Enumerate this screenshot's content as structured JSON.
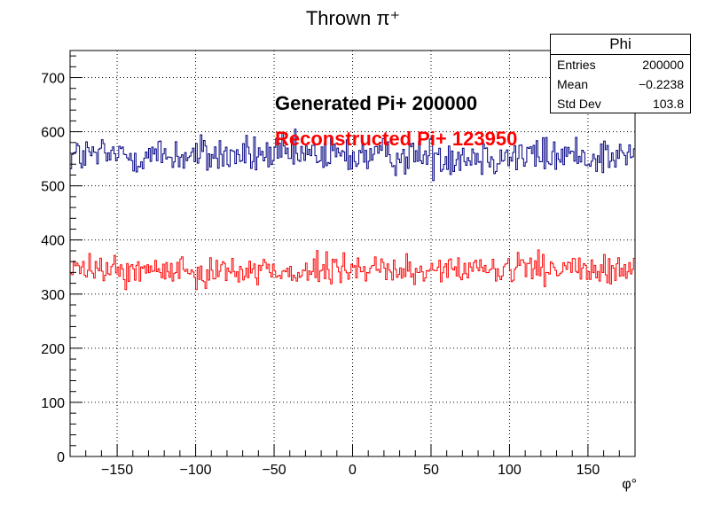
{
  "chart_data": {
    "type": "histogram",
    "title": "Thrown π⁺",
    "xlabel": "φ°",
    "ylabel": "",
    "xlim": [
      -180,
      180
    ],
    "ylim": [
      0,
      750
    ],
    "x_ticks": [
      -150,
      -100,
      -50,
      0,
      50,
      100,
      150
    ],
    "x_tick_labels": [
      "−150",
      "−100",
      "−50",
      "0",
      "50",
      "100",
      "150"
    ],
    "y_ticks": [
      0,
      100,
      200,
      300,
      400,
      500,
      600,
      700
    ],
    "y_tick_labels": [
      "0",
      "100",
      "200",
      "300",
      "400",
      "500",
      "600",
      "700"
    ],
    "grid": true,
    "bins": 360,
    "annotations": [
      {
        "text": "Generated Pi+ 200000",
        "color": "#000000"
      },
      {
        "text": "Reconstructed Pi+ 123950",
        "color": "#ff0000"
      }
    ],
    "series": [
      {
        "color": "#000080",
        "mean_count": 556,
        "min_count": 505,
        "max_count": 622,
        "total": 200000
      },
      {
        "color": "#ff0000",
        "mean_count": 344,
        "min_count": 302,
        "max_count": 392,
        "total": 123950
      }
    ],
    "stats_box": {
      "name": "Phi",
      "rows": [
        {
          "label": "Entries",
          "value": "200000"
        },
        {
          "label": "Mean",
          "value": "−0.2238"
        },
        {
          "label": "Std Dev",
          "value": "103.8"
        }
      ]
    }
  }
}
